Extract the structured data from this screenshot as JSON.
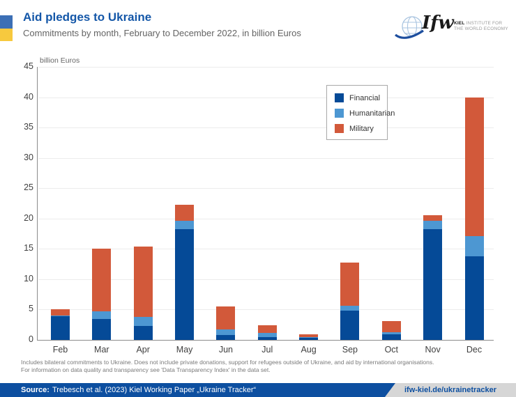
{
  "header": {
    "title": "Aid pledges to Ukraine",
    "subtitle": "Commitments by month, February to December 2022, in billion Euros"
  },
  "logo": {
    "script": "Ifw",
    "line1_bold": "KIEL",
    "line1_rest": " INSTITUTE FOR",
    "line2": "THE WORLD ECONOMY"
  },
  "chart_data": {
    "type": "bar",
    "stacked": true,
    "title": "Aid pledges to Ukraine",
    "subtitle": "Commitments by month, February to December 2022, in billion Euros",
    "ylabel": "billion Euros",
    "xlabel": "",
    "ylim": [
      0,
      45
    ],
    "ytick_step": 5,
    "grid": true,
    "legend_position": "upper right",
    "categories": [
      "Feb",
      "Mar",
      "Apr",
      "May",
      "Jun",
      "Jul",
      "Aug",
      "Sep",
      "Oct",
      "Nov",
      "Dec"
    ],
    "series": [
      {
        "name": "Financial",
        "color": "#054a97",
        "values": [
          3.9,
          3.5,
          2.3,
          18.3,
          0.8,
          0.5,
          0.4,
          4.8,
          0.9,
          18.3,
          13.8
        ]
      },
      {
        "name": "Humanitarian",
        "color": "#4d97d2",
        "values": [
          0.1,
          1.2,
          1.5,
          1.3,
          0.9,
          0.7,
          0.1,
          0.8,
          0.4,
          1.3,
          3.3
        ]
      },
      {
        "name": "Military",
        "color": "#d2593a",
        "values": [
          1.1,
          10.3,
          11.6,
          2.7,
          3.8,
          1.2,
          0.4,
          7.1,
          1.8,
          0.9,
          22.8
        ]
      }
    ],
    "totals": [
      5.1,
      15.0,
      15.4,
      22.3,
      5.5,
      2.4,
      0.9,
      12.7,
      3.1,
      20.5,
      39.9
    ]
  },
  "footnote": {
    "line1": "Includes bilateral commitments to Ukraine. Does not include private donations, support for refugees outside of Ukraine, and aid by international organisations.",
    "line2": "For information on data quality and transparency see 'Data Transparency Index' in the data set."
  },
  "source_bar": {
    "label": "Source:",
    "text": "Trebesch et al. (2023) Kiel Working Paper „Ukraine Tracker“",
    "link": "ifw-kiel.de/ukrainetracker"
  },
  "colors": {
    "title_blue": "#1457a8",
    "source_bar_blue": "#0d4fa0",
    "flag_blue": "#3c6fb5",
    "flag_yellow": "#f7c93e",
    "financial": "#054a97",
    "humanitarian": "#4d97d2",
    "military": "#d2593a"
  }
}
